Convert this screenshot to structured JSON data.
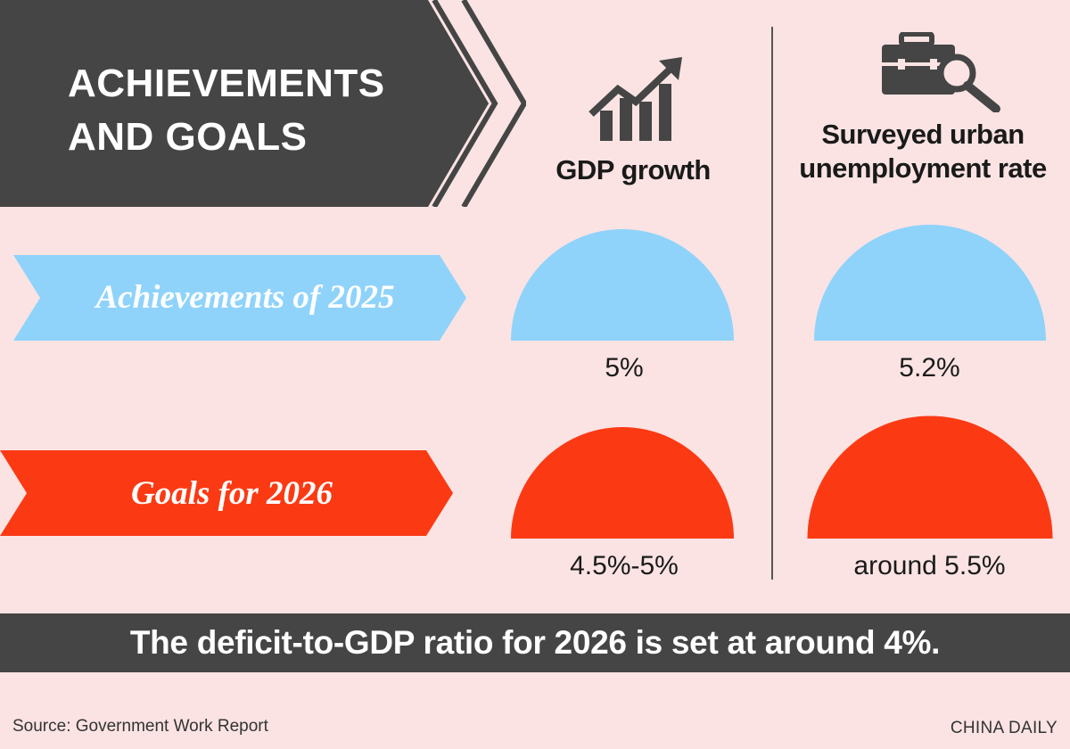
{
  "header": {
    "title_line1": "ACHIEVEMENTS",
    "title_line2": "AND GOALS"
  },
  "columns": {
    "gdp": {
      "title": "GDP growth"
    },
    "unemployment": {
      "title_line1": "Surveyed urban",
      "title_line2": "unemployment rate"
    }
  },
  "rows": {
    "achievements": {
      "label": "Achievements of 2025"
    },
    "goals": {
      "label": "Goals for 2026"
    }
  },
  "chart_data": {
    "type": "table",
    "title": "ACHIEVEMENTS AND GOALS",
    "columns": [
      "GDP growth",
      "Surveyed urban unemployment rate"
    ],
    "rows": [
      {
        "label": "Achievements of 2025",
        "values": [
          "5%",
          "5.2%"
        ],
        "numeric": [
          5,
          5.2
        ]
      },
      {
        "label": "Goals for 2026",
        "values": [
          "4.5%-5%",
          "around 5.5%"
        ],
        "numeric": [
          5,
          5.5
        ]
      }
    ]
  },
  "footer": {
    "note": "The deficit-to-GDP ratio for 2026 is set at around 4%.",
    "source": "Source: Government Work Report",
    "credit": "CHINA DAILY"
  },
  "colors": {
    "background": "#fbe3e3",
    "dark": "#454545",
    "achievement_blue": "#8fd3fb",
    "goal_red": "#fb3a14",
    "text": "#1a1a1a"
  },
  "icons": {
    "gdp": "rising-bar-chart-icon",
    "unemployment": "briefcase-magnifier-icon"
  }
}
